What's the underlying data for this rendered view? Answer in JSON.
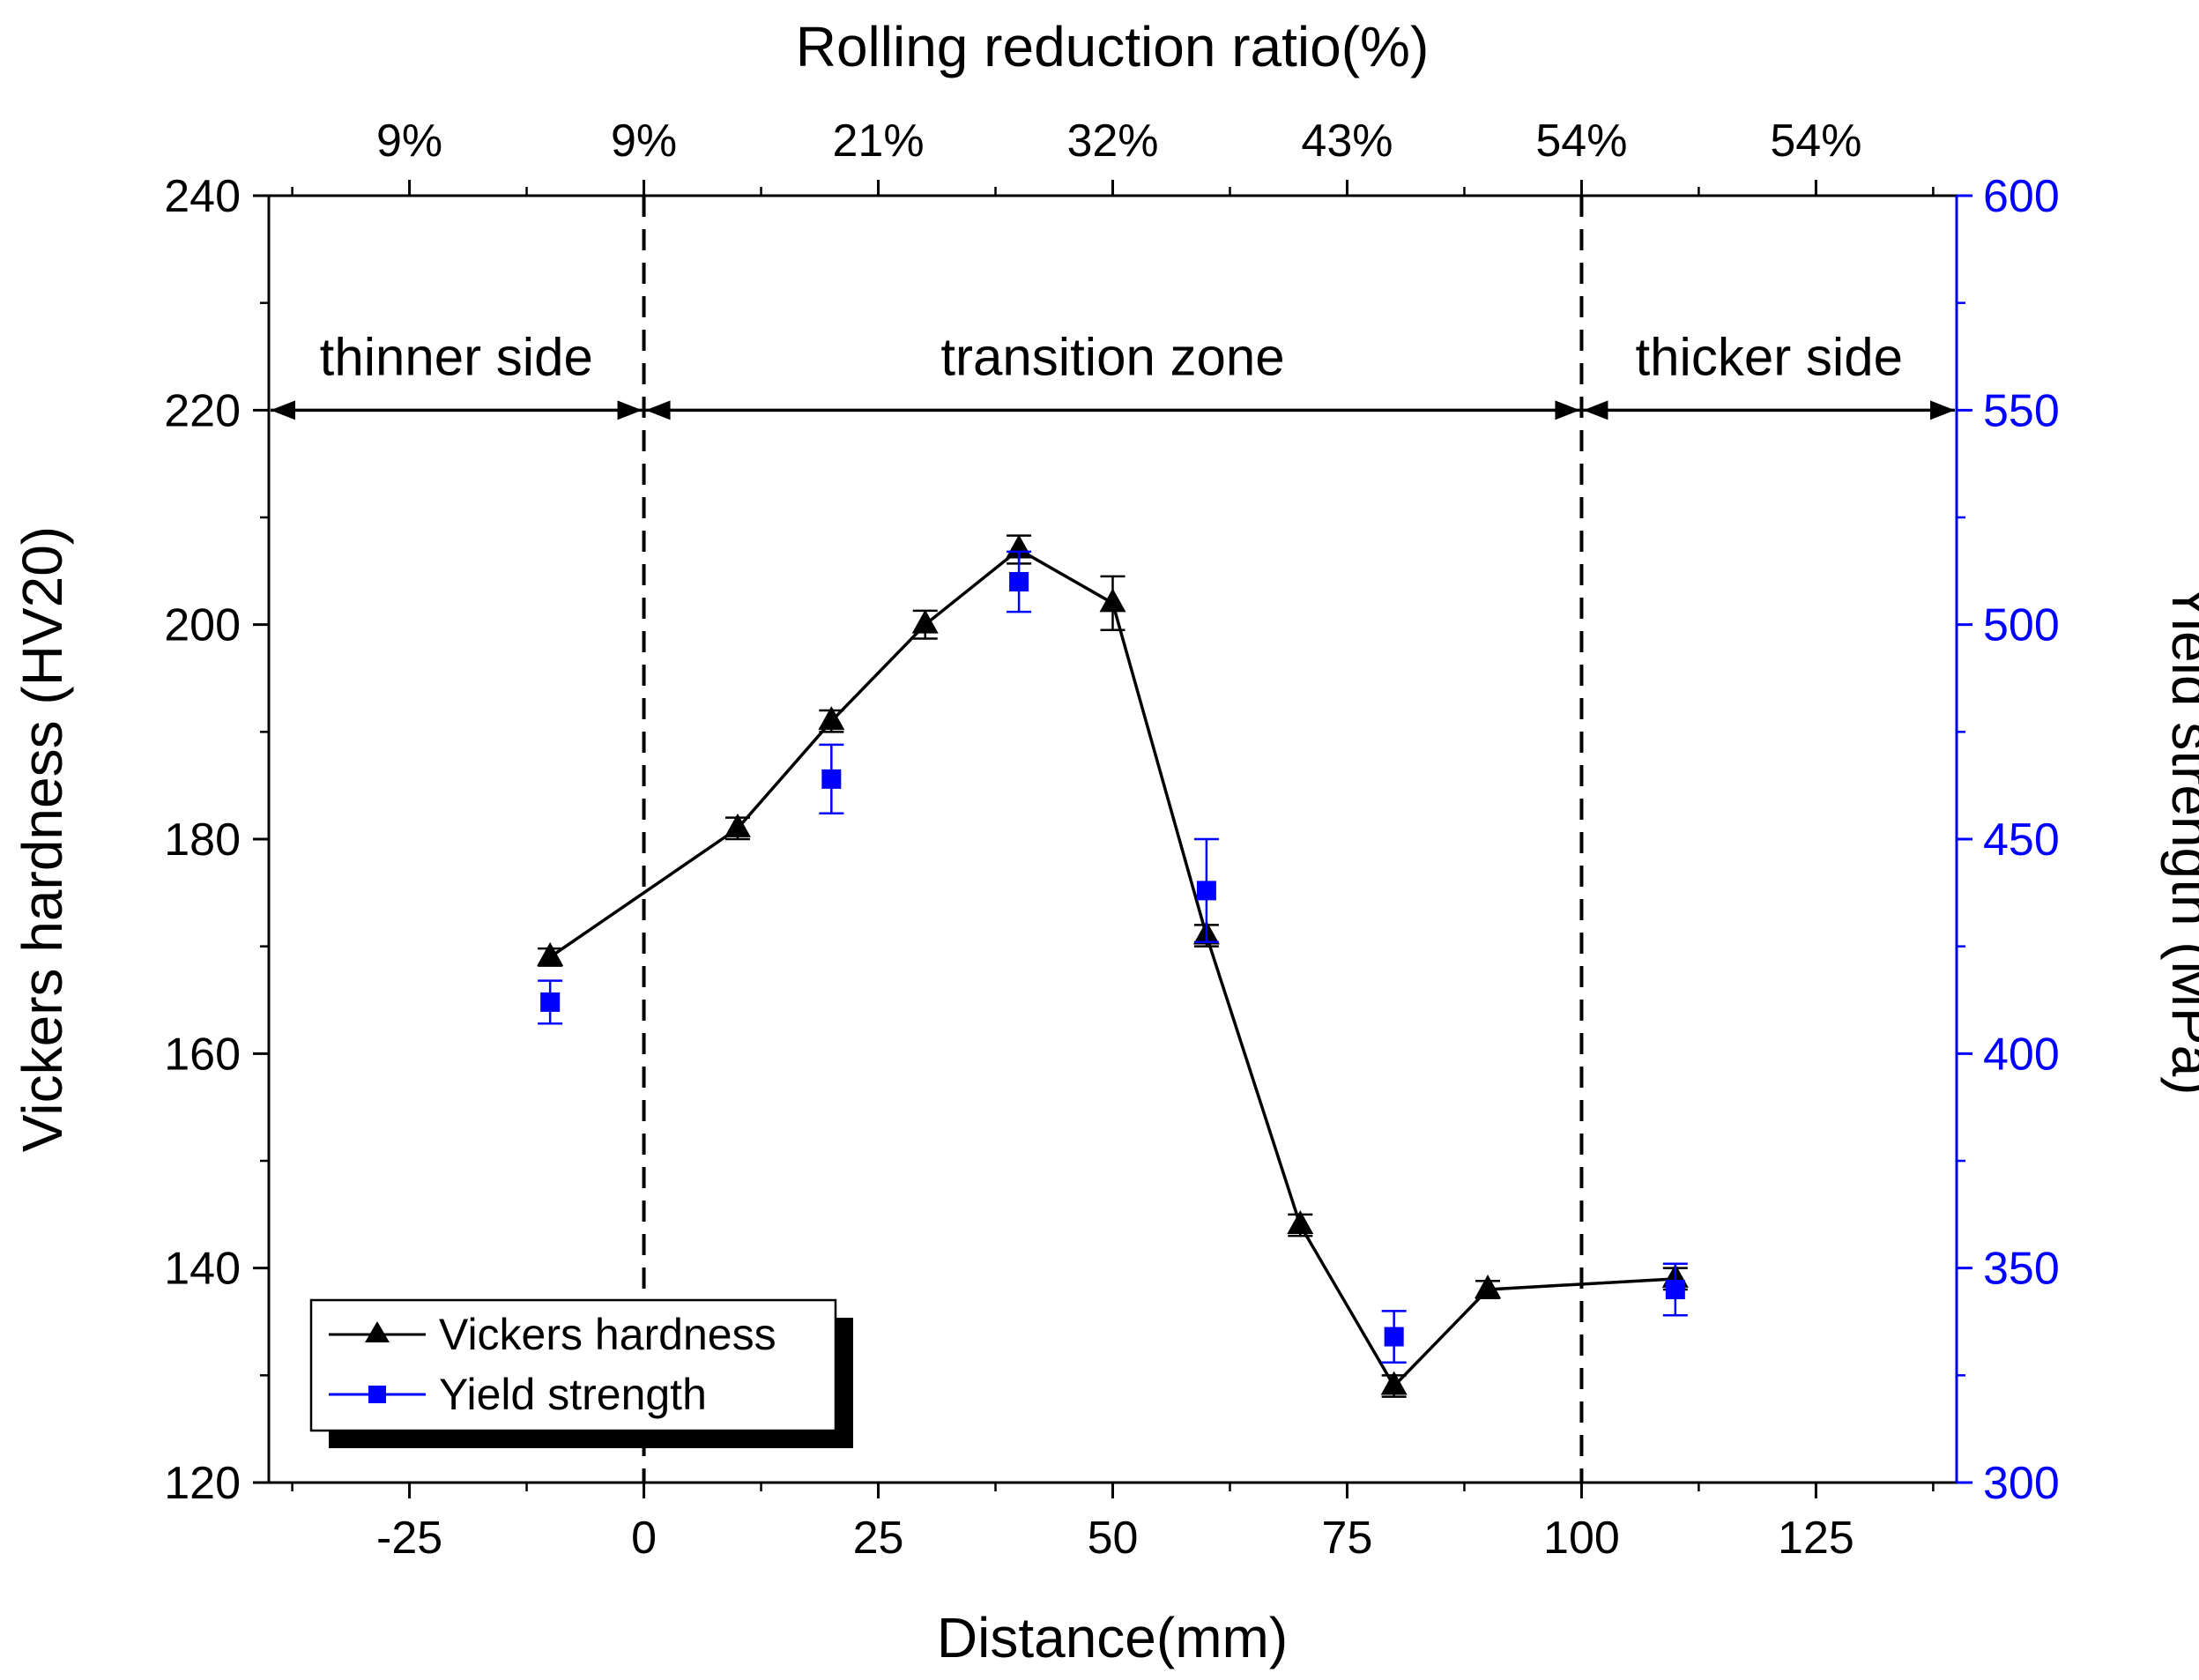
{
  "chart_data": {
    "type": "line",
    "xlabel": "Distance(mm)",
    "x2label": "Rolling reduction ratio(%)",
    "ylabel": "Vickers hardness (HV20)",
    "y2label": "Yield strength (MPa)",
    "xlim": [
      -40,
      140
    ],
    "ylim": [
      120,
      240
    ],
    "y2lim": [
      300,
      600
    ],
    "x_ticks": [
      -25,
      0,
      25,
      50,
      75,
      100,
      125
    ],
    "y_ticks": [
      120,
      140,
      160,
      180,
      200,
      220,
      240
    ],
    "y2_ticks": [
      300,
      350,
      400,
      450,
      500,
      550,
      600
    ],
    "top_ticks": [
      {
        "at": -25,
        "label": "9%"
      },
      {
        "at": 0,
        "label": "9%"
      },
      {
        "at": 25,
        "label": "21%"
      },
      {
        "at": 50,
        "label": "32%"
      },
      {
        "at": 75,
        "label": "43%"
      },
      {
        "at": 100,
        "label": "54%"
      },
      {
        "at": 125,
        "label": "54%"
      }
    ],
    "zones": [
      {
        "label": "thinner side",
        "from": -40,
        "to": 0
      },
      {
        "label": "transition zone",
        "from": 0,
        "to": 100
      },
      {
        "label": "thicker side",
        "from": 100,
        "to": 140
      }
    ],
    "zone_arrow_y": 220,
    "boundaries": [
      0,
      100
    ],
    "series": [
      {
        "name": "Vickers hardness",
        "axis": "left",
        "marker": "triangle",
        "color": "#000000",
        "connected": true,
        "x": [
          -10,
          10,
          20,
          30,
          40,
          50,
          60,
          70,
          80,
          90,
          110
        ],
        "values": [
          169,
          181,
          191,
          200,
          207,
          202,
          171,
          144,
          129,
          138,
          139
        ],
        "errors": [
          0.8,
          1,
          1,
          1.3,
          1.3,
          2.5,
          1,
          1,
          1,
          0.8,
          1
        ]
      },
      {
        "name": "Yield strength",
        "axis": "right",
        "marker": "square",
        "color": "#0000ff",
        "connected": false,
        "x": [
          -10,
          20,
          40,
          60,
          80,
          110
        ],
        "values": [
          412,
          464,
          510,
          438,
          334,
          345
        ],
        "errors": [
          5,
          8,
          7,
          12,
          6,
          6
        ]
      }
    ]
  }
}
